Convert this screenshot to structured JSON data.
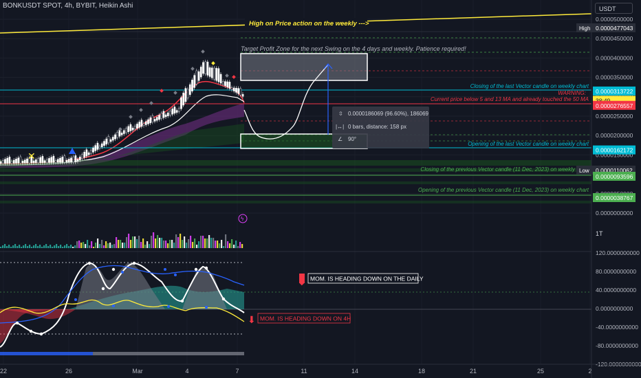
{
  "header": {
    "title": "BONKUSDT SPOT, 4h, BYBIT, Heikin Ashi",
    "currency": "USDT"
  },
  "colors": {
    "background": "#131722",
    "grid": "#1e222d",
    "up": "#ffffff",
    "down": "#d1d4dc",
    "accent_cyan": "#00bcd4",
    "accent_red": "#f23645",
    "accent_green": "#4caf50",
    "accent_yellow": "#ffeb3b"
  },
  "chart_data": [
    {
      "type": "line",
      "pane": "price",
      "title": "",
      "y_axis": {
        "scale": "linear",
        "ylim": [
          0.0,
          5.25e-06
        ],
        "tick_labels": [
          "0.0000500000",
          "0.0000450000",
          "0.0000400000",
          "0.0000350000",
          "0.0000300000",
          "0.0000250000",
          "0.0000200000",
          "0.0000150000",
          "0.0000100000",
          "0.0000050000",
          "0.0000000000"
        ],
        "ticks": [
          5e-05,
          4.5e-05,
          4e-05,
          3.5e-05,
          3e-05,
          2.5e-05,
          2e-05,
          1.5e-05,
          1e-05,
          5e-06,
          0.0
        ]
      },
      "x_axis": {
        "tick_labels": [
          "22",
          "26",
          "Mar",
          "4",
          "7",
          "11",
          "14",
          "18",
          "21",
          "25",
          "2"
        ]
      },
      "price_labels": [
        {
          "text": "High",
          "value": "0.0000477043",
          "y": 4.77e-05,
          "bg": "#2a2e39"
        },
        {
          "text": "",
          "value": "0.0000313722",
          "y": 3.14e-05,
          "bg": "#00bcd4"
        },
        {
          "text": "",
          "value": "38:49",
          "y": 2.9e-05,
          "bg": "#ffeb3b"
        },
        {
          "text": "",
          "value": "0.0000276557",
          "y": 2.77e-05,
          "bg": "#f23645"
        },
        {
          "text": "",
          "value": "0.0000162172",
          "y": 1.62e-05,
          "bg": "#00bcd4"
        },
        {
          "text": "Low",
          "value": "0.0000110062",
          "y": 1.1e-05,
          "bg": "#2a2e39"
        },
        {
          "text": "",
          "value": "0.0000093596",
          "y": 9.4e-06,
          "bg": "#4caf50"
        },
        {
          "text": "",
          "value": "0.0000038767",
          "y": 3.9e-06,
          "bg": "#4caf50"
        }
      ],
      "annotations": [
        {
          "text": "High on Price action on the weekly --->",
          "color": "#ffeb3b"
        },
        {
          "text": "Target Profit Zone for the next Swing on the 4 days and weekly. Patience required!",
          "color": "#b2b5be"
        },
        {
          "text": "Closing of the last Vector candle on weekly chart",
          "color": "#00bcd4"
        },
        {
          "text": "WARNING:",
          "color": "#f23645"
        },
        {
          "text": "Current price below 5 and 13 MA and already touched the 50 MA",
          "color": "#f23645"
        },
        {
          "text": "Opening of the last Vector candle on weekly chart",
          "color": "#00bcd4"
        },
        {
          "text": "Closing of the previous Vector candle (11 Dec, 2023) on weekly chart",
          "color": "#4caf50"
        },
        {
          "text": "Opening of the previous Vector candle (11 Dec, 2023) on weekly chart",
          "color": "#4caf50"
        }
      ],
      "measure": {
        "line1": "0.0000186069 (96.60%), 186069",
        "line2": "0 bars, distance: 158 px",
        "line3": "90°"
      }
    },
    {
      "type": "bar",
      "pane": "volume",
      "y_axis": {
        "tick_labels": [
          "1T"
        ]
      }
    },
    {
      "type": "line",
      "pane": "momentum",
      "y_axis": {
        "ylim": [
          -120,
          120
        ],
        "tick_labels": [
          "120.0000000000",
          "80.0000000000",
          "40.0000000000",
          "0.0000000000",
          "-40.0000000000",
          "-80.0000000000",
          "-120.0000000000"
        ],
        "ticks": [
          120,
          80,
          40,
          0,
          -40,
          -80,
          -120
        ]
      },
      "annotations": [
        {
          "text": "MOM. IS HEADING DOWN ON THE DAILY"
        },
        {
          "text": "MOM. IS HEADING DOWN ON 4H"
        }
      ]
    }
  ]
}
